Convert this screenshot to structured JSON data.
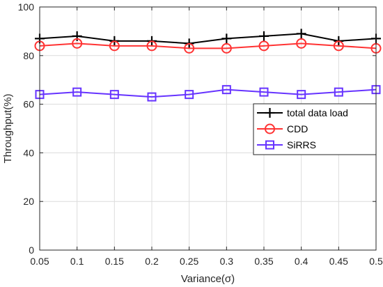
{
  "chart_data": {
    "type": "line",
    "title": "",
    "xlabel": "Variance(σ)",
    "ylabel": "Throughput(%)",
    "x": [
      0.05,
      0.1,
      0.15,
      0.2,
      0.25,
      0.3,
      0.35,
      0.4,
      0.45,
      0.5
    ],
    "x_tick_labels": [
      "0.05",
      "0.1",
      "0.15",
      "0.2",
      "0.25",
      "0.3",
      "0.35",
      "0.4",
      "0.45",
      "0.5"
    ],
    "y_ticks": [
      0,
      20,
      40,
      60,
      80,
      100
    ],
    "y_tick_labels": [
      "0",
      "20",
      "40",
      "60",
      "80",
      "100"
    ],
    "xlim": [
      0.05,
      0.5
    ],
    "ylim": [
      0,
      100
    ],
    "grid": true,
    "legend_position": "right",
    "series": [
      {
        "name": "total data load",
        "color": "#000000",
        "marker": "plus",
        "values": [
          87,
          88,
          86,
          86,
          85,
          87,
          88,
          89,
          86,
          87
        ]
      },
      {
        "name": "CDD",
        "color": "#ff3333",
        "marker": "circle",
        "values": [
          84,
          85,
          84,
          84,
          83,
          83,
          84,
          85,
          84,
          83
        ]
      },
      {
        "name": "SiRRS",
        "color": "#6633ff",
        "marker": "square",
        "values": [
          64,
          65,
          64,
          63,
          64,
          66,
          65,
          64,
          65,
          66
        ]
      }
    ]
  }
}
